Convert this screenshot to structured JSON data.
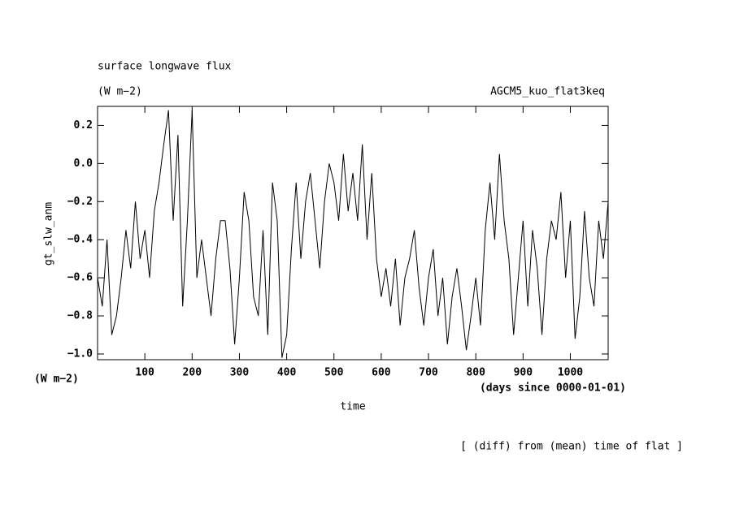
{
  "chart_data": {
    "type": "line",
    "title": "surface longwave flux",
    "subtitle": "(W m−2)",
    "annotation": "AGCM5_kuo_flat3keq",
    "ylabel": "gt_slw_anm",
    "yunit": "(W m−2)",
    "xlabel": "time",
    "xunit": "(days since 0000-01-01)",
    "footer": "[ (diff) from (mean) time of flat ]",
    "color": "#000000",
    "xlim": [
      0,
      1080
    ],
    "ylim": [
      -1.03,
      0.3
    ],
    "xticks": [
      100,
      200,
      300,
      400,
      500,
      600,
      700,
      800,
      900,
      1000
    ],
    "yticks": [
      {
        "value": 0.2,
        "label": "0.2"
      },
      {
        "value": 0,
        "label": "0.0"
      },
      {
        "value": -0.2,
        "label": "−0.2"
      },
      {
        "value": -0.4,
        "label": "−0.4"
      },
      {
        "value": -0.6,
        "label": "−0.6"
      },
      {
        "value": -0.8,
        "label": "−0.8"
      },
      {
        "value": -1,
        "label": "−1.0"
      }
    ],
    "x": [
      0,
      10,
      20,
      30,
      40,
      50,
      60,
      70,
      80,
      90,
      100,
      110,
      120,
      130,
      140,
      150,
      160,
      170,
      180,
      190,
      200,
      210,
      220,
      230,
      240,
      250,
      260,
      270,
      280,
      290,
      300,
      310,
      320,
      330,
      340,
      350,
      360,
      370,
      380,
      390,
      400,
      410,
      420,
      430,
      440,
      450,
      460,
      470,
      480,
      490,
      500,
      510,
      520,
      530,
      540,
      550,
      560,
      570,
      580,
      590,
      600,
      610,
      620,
      630,
      640,
      650,
      660,
      670,
      680,
      690,
      700,
      710,
      720,
      730,
      740,
      750,
      760,
      770,
      780,
      790,
      800,
      810,
      820,
      830,
      840,
      850,
      860,
      870,
      880,
      890,
      900,
      910,
      920,
      930,
      940,
      950,
      960,
      970,
      980,
      990,
      1000,
      1010,
      1020,
      1030,
      1040,
      1050,
      1060,
      1070,
      1080
    ],
    "values": [
      -0.6,
      -0.75,
      -0.4,
      -0.9,
      -0.8,
      -0.6,
      -0.35,
      -0.55,
      -0.2,
      -0.5,
      -0.35,
      -0.6,
      -0.25,
      -0.1,
      0.1,
      0.28,
      -0.3,
      0.15,
      -0.75,
      -0.3,
      0.28,
      -0.6,
      -0.4,
      -0.6,
      -0.8,
      -0.5,
      -0.3,
      -0.3,
      -0.55,
      -0.95,
      -0.6,
      -0.15,
      -0.3,
      -0.7,
      -0.8,
      -0.35,
      -0.9,
      -0.1,
      -0.3,
      -1.02,
      -0.9,
      -0.45,
      -0.1,
      -0.5,
      -0.2,
      -0.05,
      -0.3,
      -0.55,
      -0.2,
      0.0,
      -0.1,
      -0.3,
      0.05,
      -0.25,
      -0.05,
      -0.3,
      0.1,
      -0.4,
      -0.05,
      -0.5,
      -0.7,
      -0.55,
      -0.75,
      -0.5,
      -0.85,
      -0.6,
      -0.5,
      -0.35,
      -0.65,
      -0.85,
      -0.6,
      -0.45,
      -0.8,
      -0.6,
      -0.95,
      -0.7,
      -0.55,
      -0.75,
      -0.98,
      -0.8,
      -0.6,
      -0.85,
      -0.35,
      -0.1,
      -0.4,
      0.05,
      -0.3,
      -0.5,
      -0.9,
      -0.6,
      -0.3,
      -0.75,
      -0.35,
      -0.55,
      -0.9,
      -0.5,
      -0.3,
      -0.4,
      -0.15,
      -0.6,
      -0.3,
      -0.92,
      -0.7,
      -0.25,
      -0.6,
      -0.75,
      -0.3,
      -0.5,
      -0.2
    ]
  }
}
